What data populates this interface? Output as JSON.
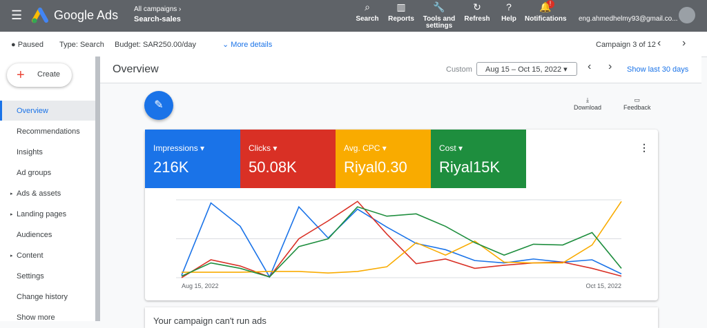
{
  "header": {
    "product": "Google Ads",
    "breadcrumb": "All campaigns",
    "campaign": "Search-sales",
    "nav": [
      "Search",
      "Reports",
      "Tools and settings",
      "Refresh",
      "Help",
      "Notifications"
    ],
    "badge": "!",
    "account": "eng.ahmedhelmy93@gmail.co..."
  },
  "subbar": {
    "status": "Paused",
    "type": "Type: Search",
    "budget": "Budget: SAR250.00/day",
    "details": "More details",
    "position": "Campaign 3 of 12"
  },
  "sidebar": {
    "create": "Create",
    "items": [
      "Overview",
      "Recommendations",
      "Insights",
      "Ad groups",
      "Ads & assets",
      "Landing pages",
      "Audiences",
      "Content",
      "Settings",
      "Change history",
      "Show more"
    ]
  },
  "page": {
    "title": "Overview",
    "range_type": "Custom",
    "range": "Aug 15 – Oct 15, 2022",
    "quick": "Show last 30 days",
    "download": "Download",
    "feedback": "Feedback",
    "next_card": "Your campaign can't run ads"
  },
  "metric_totals": [
    "216K",
    "50.08K",
    "Riyal0.30",
    "Riyal15K"
  ],
  "chart_data": {
    "type": "line",
    "categories": [
      "Aug 15, 2022",
      null,
      null,
      null,
      null,
      null,
      null,
      null,
      null,
      null,
      null,
      null,
      null,
      null,
      null,
      "Oct 15, 2022"
    ],
    "ylim": [
      0,
      100
    ],
    "series": [
      {
        "name": "Impressions",
        "color": "#1a73e8",
        "values": [
          3,
          96,
          66,
          1,
          91,
          51,
          88,
          65,
          44,
          36,
          22,
          19,
          24,
          20,
          23,
          5
        ]
      },
      {
        "name": "Clicks",
        "color": "#d93025",
        "values": [
          0,
          23,
          15,
          1,
          50,
          73,
          98,
          56,
          18,
          24,
          12,
          16,
          19,
          20,
          12,
          2
        ]
      },
      {
        "name": "Avg. CPC",
        "color": "#f9ab00",
        "values": [
          7,
          7,
          7,
          8,
          8,
          6,
          8,
          14,
          45,
          29,
          47,
          20,
          19,
          19,
          42,
          98
        ]
      },
      {
        "name": "Cost",
        "color": "#1e8e3e",
        "values": [
          2,
          19,
          12,
          1,
          40,
          50,
          91,
          79,
          82,
          66,
          45,
          29,
          43,
          42,
          58,
          12
        ]
      }
    ]
  }
}
